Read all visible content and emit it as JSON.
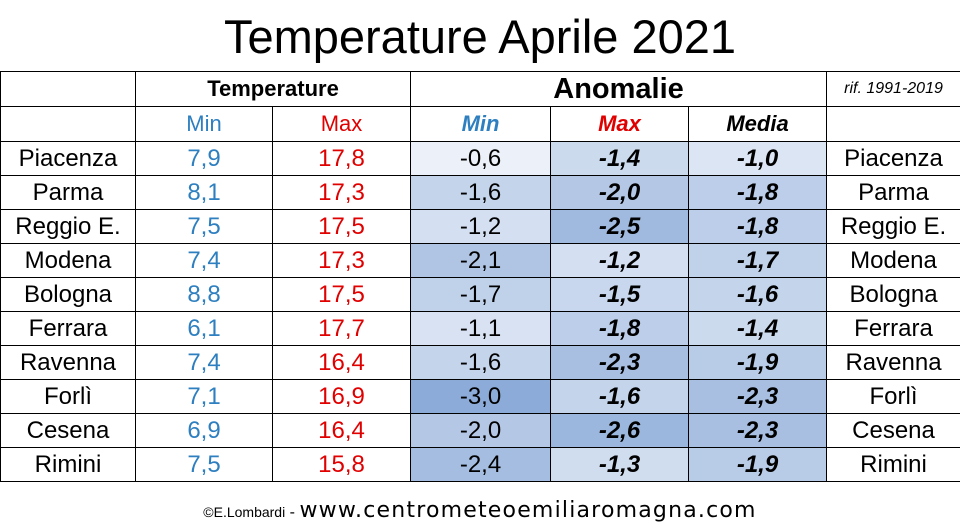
{
  "title": "Temperature Aprile 2021",
  "header": {
    "temperature": "Temperature",
    "anomalie": "Anomalie",
    "reference": "rif. 1991-2019",
    "min": "Min",
    "max": "Max",
    "anom_min": "Min",
    "anom_max": "Max",
    "anom_media": "Media"
  },
  "footer": {
    "author": "©E.Lombardi",
    "separator": " - ",
    "site": "www.centrometeoemiliaromagna.com"
  },
  "colors": {
    "min_text": "#2e7fc0",
    "max_text": "#e00000",
    "anomaly_scale_light": "#ecf1f9",
    "anomaly_scale_dark": "#8cabd8"
  },
  "chart_data": {
    "type": "table",
    "title": "Temperature Aprile 2021",
    "columns": [
      "Temperature Min",
      "Temperature Max",
      "Anomalie Min",
      "Anomalie Max",
      "Anomalie Media"
    ],
    "reference_period": "rif. 1991-2019",
    "rows": [
      {
        "city": "Piacenza",
        "min": "7,9",
        "max": "17,8",
        "anom_min": "-0,6",
        "anom_max": "-1,4",
        "anom_media": "-1,0"
      },
      {
        "city": "Parma",
        "min": "8,1",
        "max": "17,3",
        "anom_min": "-1,6",
        "anom_max": "-2,0",
        "anom_media": "-1,8"
      },
      {
        "city": "Reggio E.",
        "min": "7,5",
        "max": "17,5",
        "anom_min": "-1,2",
        "anom_max": "-2,5",
        "anom_media": "-1,8"
      },
      {
        "city": "Modena",
        "min": "7,4",
        "max": "17,3",
        "anom_min": "-2,1",
        "anom_max": "-1,2",
        "anom_media": "-1,7"
      },
      {
        "city": "Bologna",
        "min": "8,8",
        "max": "17,5",
        "anom_min": "-1,7",
        "anom_max": "-1,5",
        "anom_media": "-1,6"
      },
      {
        "city": "Ferrara",
        "min": "6,1",
        "max": "17,7",
        "anom_min": "-1,1",
        "anom_max": "-1,8",
        "anom_media": "-1,4"
      },
      {
        "city": "Ravenna",
        "min": "7,4",
        "max": "16,4",
        "anom_min": "-1,6",
        "anom_max": "-2,3",
        "anom_media": "-1,9"
      },
      {
        "city": "Forlì",
        "min": "7,1",
        "max": "16,9",
        "anom_min": "-3,0",
        "anom_max": "-1,6",
        "anom_media": "-2,3"
      },
      {
        "city": "Cesena",
        "min": "6,9",
        "max": "16,4",
        "anom_min": "-2,0",
        "anom_max": "-2,6",
        "anom_media": "-2,3"
      },
      {
        "city": "Rimini",
        "min": "7,5",
        "max": "15,8",
        "anom_min": "-2,4",
        "anom_max": "-1,3",
        "anom_media": "-1,9"
      }
    ]
  }
}
